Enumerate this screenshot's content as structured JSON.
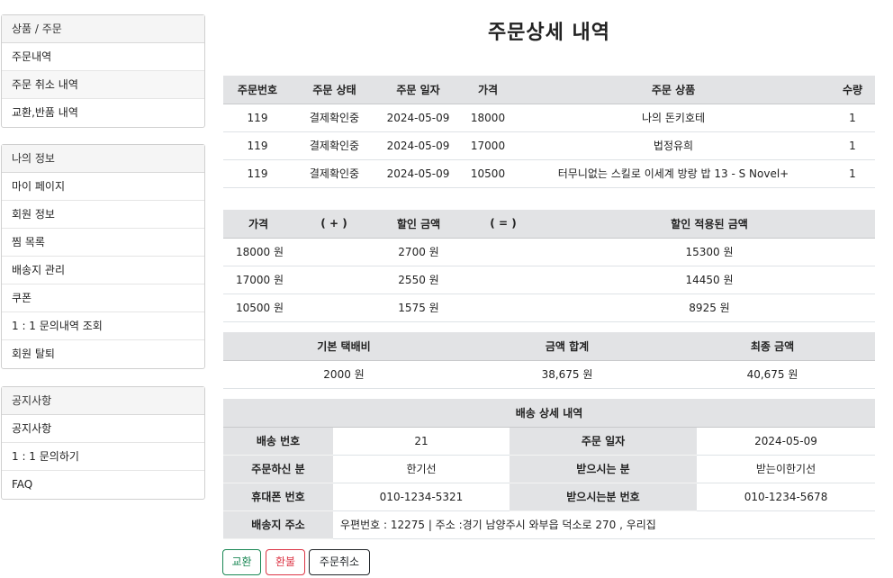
{
  "sidebar": {
    "groups": [
      {
        "title": "상품 / 주문",
        "items": [
          "주문내역",
          "주문 취소 내역",
          "교환,반품 내역"
        ]
      },
      {
        "title": "나의 정보",
        "items": [
          "마이 페이지",
          "회원 정보",
          "찜 목록",
          "배송지 관리",
          "쿠폰",
          "1 : 1 문의내역 조회",
          "회원 탈퇴"
        ]
      },
      {
        "title": "공지사항",
        "items": [
          "공지사항",
          "1 : 1 문의하기",
          "FAQ"
        ]
      }
    ]
  },
  "page_title": "주문상세 내역",
  "orders": {
    "headers": [
      "주문번호",
      "주문 상태",
      "주문 일자",
      "가격",
      "주문 상품",
      "수량"
    ],
    "rows": [
      [
        "119",
        "결제확인중",
        "2024-05-09",
        "18000",
        "나의 돈키호테",
        "1"
      ],
      [
        "119",
        "결제확인중",
        "2024-05-09",
        "17000",
        "법정유희",
        "1"
      ],
      [
        "119",
        "결제확인중",
        "2024-05-09",
        "10500",
        "터무니없는 스킬로 이세계 방랑 밥 13 - S Novel+",
        "1"
      ]
    ]
  },
  "price": {
    "headers": [
      "가격",
      "( + )",
      "할인 금액",
      "( = )",
      "할인 적용된 금액"
    ],
    "rows": [
      [
        "18000 원",
        "",
        "2700 원",
        "",
        "15300 원"
      ],
      [
        "17000 원",
        "",
        "2550 원",
        "",
        "14450 원"
      ],
      [
        "10500 원",
        "",
        "1575 원",
        "",
        "8925 원"
      ]
    ]
  },
  "summary": {
    "headers": [
      "기본 택배비",
      "금액 합계",
      "최종 금액"
    ],
    "values": [
      "2000 원",
      "38,675 원",
      "40,675 원"
    ]
  },
  "shipping": {
    "title": "배송 상세 내역",
    "delivery_no_label": "배송 번호",
    "delivery_no": "21",
    "order_date_label": "주문 일자",
    "order_date": "2024-05-09",
    "orderer_label": "주문하신 분",
    "orderer": "한기선",
    "receiver_label": "받으시는 분",
    "receiver": "받는이한기선",
    "phone_label": "휴대폰 번호",
    "phone": "010-1234-5321",
    "receiver_phone_label": "받으시는분 번호",
    "receiver_phone": "010-1234-5678",
    "address_label": "배송지 주소",
    "address": "우편번호 : 12275 | 주소 :경기 남양주시 와부읍 덕소로 270 , 우리집"
  },
  "buttons": {
    "exchange": "교환",
    "refund": "환불",
    "cancel": "주문취소"
  }
}
